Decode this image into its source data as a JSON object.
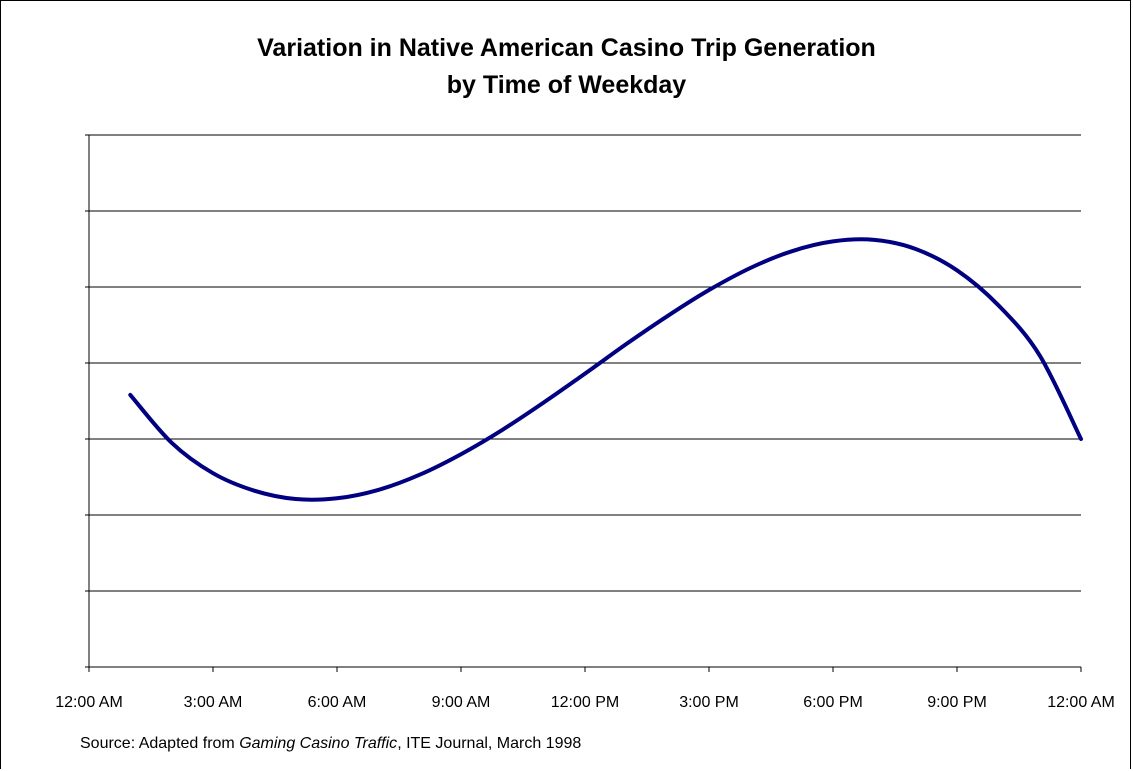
{
  "chart_data": {
    "type": "line",
    "title_line1": "Variation in Native American Casino Trip Generation",
    "title_line2": "by Time of Weekday",
    "xlabel": "",
    "ylabel": "",
    "x_ticks": [
      "12:00 AM",
      "3:00 AM",
      "6:00 AM",
      "9:00 AM",
      "12:00 PM",
      "3:00 PM",
      "6:00 PM",
      "9:00 PM",
      "12:00 AM"
    ],
    "x_range_hours": [
      0,
      24
    ],
    "y_range": [
      0,
      7
    ],
    "y_gridlines": 7,
    "y_tick_labels_shown": false,
    "grid": "horizontal",
    "legend": "none",
    "line_color": "#000080",
    "series": [
      {
        "x": [
          1,
          2,
          3,
          4,
          5,
          6,
          7,
          8,
          9,
          10,
          11,
          12,
          13,
          14,
          15,
          16,
          17,
          18,
          19,
          20,
          21,
          22,
          23,
          24
        ],
        "values": [
          3.58,
          2.95,
          2.55,
          2.32,
          2.21,
          2.22,
          2.33,
          2.53,
          2.8,
          3.12,
          3.48,
          3.86,
          4.25,
          4.62,
          4.96,
          5.25,
          5.47,
          5.6,
          5.62,
          5.5,
          5.22,
          4.76,
          4.1,
          3.0
        ]
      }
    ]
  },
  "source": {
    "prefix": "Source:  Adapted from ",
    "italic": "Gaming Casino Traffic",
    "suffix": ", ITE Journal, March 1998"
  }
}
